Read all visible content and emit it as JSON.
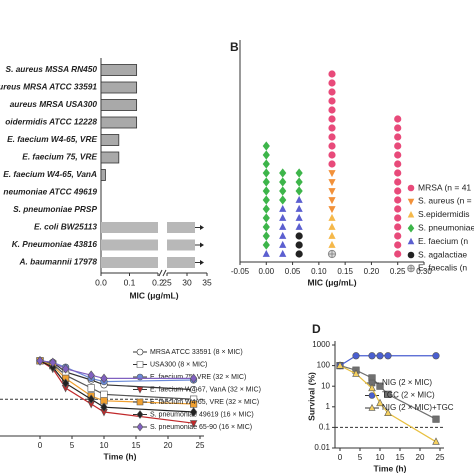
{
  "chart_data": [
    {
      "type": "hbar",
      "categories": [
        "S. aureus MSSA RN450",
        "aureus MRSA ATCC 33591",
        "aureus MRSA USA300",
        "oidermidis ATCC 12228",
        "E. faecium W4-65, VRE",
        "E. faecium 75, VRE",
        "E. faecium W4-65, VanA",
        "neumoniae ATCC 49619",
        "S. pneumoniae PRSP",
        "E. coli BW25113",
        "K. Pneumoniae 43816",
        "A. baumannii 17978"
      ],
      "values": [
        0.125,
        0.125,
        0.125,
        0.125,
        0.0625,
        0.0625,
        0.0156,
        null,
        null,
        32,
        32,
        32
      ],
      "color": "#a9a9a9",
      "edge_color": "#333333",
      "color_beyond_break": "#b8b8b8",
      "xlim": [
        0,
        35
      ],
      "xbreak": [
        0.2,
        25
      ],
      "xticks": [
        {
          "value": 0,
          "label": "0.0"
        },
        {
          "value": 0.1,
          "label": "0.1"
        },
        {
          "value": 0.2,
          "label": "0.2"
        },
        25,
        30,
        35
      ],
      "xlabel": "MIC (μg/mL)"
    },
    {
      "type": "strip",
      "panel": "B",
      "xlim": [
        -0.05,
        0.3
      ],
      "xticks": [
        -0.05,
        {
          "value": 0,
          "label": "0.00"
        },
        0.05,
        {
          "value": 0.1,
          "label": "0.10"
        },
        0.15,
        {
          "value": 0.2,
          "label": "0.20"
        },
        0.25,
        {
          "value": 0.3,
          "label": "0.30"
        }
      ],
      "xlabel": "MIC (μg/mL)",
      "series": [
        {
          "name": "MRSA (n = 41",
          "color": "#e84a7a",
          "marker": "circle",
          "values": [
            0.125,
            0.125,
            0.125,
            0.125,
            0.125,
            0.125,
            0.125,
            0.125,
            0.125,
            0.125,
            0.125,
            0.25,
            0.25,
            0.25,
            0.25,
            0.25,
            0.25,
            0.25,
            0.25,
            0.25,
            0.25,
            0.25,
            0.25,
            0.25,
            0.25,
            0.25,
            0.25
          ]
        },
        {
          "name": "S. aureus (n =",
          "color": "#f2913a",
          "marker": "triangle-down",
          "values": [
            0.125,
            0.125,
            0.125,
            0.125,
            0.125
          ]
        },
        {
          "name": "S.epidermidis",
          "color": "#f5b84a",
          "marker": "triangle",
          "values": [
            0.125,
            0.125,
            0.125,
            0.125
          ]
        },
        {
          "name": "S. pneumoniae",
          "color": "#3db54a",
          "marker": "diamond",
          "values": [
            0,
            0,
            0,
            0,
            0,
            0,
            0,
            0,
            0,
            0,
            0,
            0,
            0.03125,
            0.03125,
            0.03125,
            0.03125,
            0.0625,
            0.0625,
            0.0625
          ]
        },
        {
          "name": "E. faecium (n",
          "color": "#5b5fd0",
          "marker": "triangle",
          "values": [
            0,
            0.03125,
            0.03125,
            0.03125,
            0.03125,
            0.03125,
            0.03125,
            0.0625,
            0.0625,
            0.0625,
            0.0625
          ]
        },
        {
          "name": "S. agalactiae",
          "color": "#222222",
          "marker": "circle",
          "values": [
            0.0625,
            0.0625,
            0.0625
          ]
        },
        {
          "name": "E. faecalis (n",
          "color": "#8a8a8a",
          "marker": "circle-cross",
          "values": [
            0.125
          ]
        }
      ]
    },
    {
      "type": "line",
      "x": [
        0,
        2,
        4,
        8,
        10,
        24
      ],
      "xlim": [
        0,
        25
      ],
      "xticks": [
        0,
        5,
        10,
        15,
        20,
        25
      ],
      "xlabel": "Time (h)",
      "ylim": [
        2,
        8
      ],
      "ref_line": 4.3,
      "series": [
        {
          "name": "MRSA ATCC 33591 (8 × MIC)",
          "color": "#333333",
          "marker": "circle-open",
          "values": [
            6.7,
            6.6,
            6.0,
            5.5,
            5.2,
            4.9
          ]
        },
        {
          "name": "USA300 (8 × MIC)",
          "color": "#555555",
          "marker": "square-open",
          "values": [
            6.7,
            6.5,
            5.8,
            5.0,
            4.6,
            4.3
          ]
        },
        {
          "name": "E. faecium 75, VRE (32 × MIC)",
          "color": "#6a8ad8",
          "marker": "circle",
          "values": [
            6.7,
            6.6,
            6.3,
            5.6,
            5.4,
            5.5
          ]
        },
        {
          "name": "E. faecium W4-67, VanA (32 × MIC)",
          "color": "#c0282a",
          "marker": "triangle-down",
          "values": [
            6.7,
            6.2,
            5.0,
            4.0,
            3.5,
            2.8
          ]
        },
        {
          "name": "E. faecium W4-65, VRE (32 × MIC)",
          "color": "#f0a030",
          "marker": "square",
          "values": [
            6.7,
            6.4,
            5.6,
            4.5,
            4.2,
            4.0
          ]
        },
        {
          "name": "S. pneumoniae 49619 (16 × MIC)",
          "color": "#222222",
          "marker": "diamond",
          "values": [
            6.7,
            6.3,
            5.3,
            4.3,
            3.8,
            3.5
          ]
        },
        {
          "name": "S. pneumoniae 65-90 (16 × MIC)",
          "color": "#8060c0",
          "marker": "diamond",
          "values": [
            6.7,
            6.6,
            6.2,
            5.8,
            5.6,
            5.6
          ]
        }
      ]
    },
    {
      "type": "line",
      "panel": "D",
      "log_y": true,
      "x": [
        0,
        4,
        8,
        10,
        12,
        24
      ],
      "xlim": [
        0,
        25
      ],
      "xticks": [
        0,
        5,
        10,
        15,
        20,
        25
      ],
      "xlabel": "Time (h)",
      "ylim": [
        0.01,
        1000
      ],
      "yticks": [
        0.01,
        0.1,
        1,
        10,
        100,
        1000
      ],
      "ylabel": "Survival (%)",
      "ref_line": 0.1,
      "series": [
        {
          "name": "NIG (2 × MIC)",
          "color": "#707070",
          "marker": "square",
          "values": [
            100,
            60,
            25,
            10,
            4,
            0.25
          ]
        },
        {
          "name": "TGC (2 × MIC)",
          "color": "#4a5fd0",
          "marker": "circle",
          "values": [
            100,
            300,
            300,
            300,
            300,
            300
          ]
        },
        {
          "name": "NIG (2 × MIC)+TGC",
          "color": "#f5d060",
          "marker": "triangle",
          "values": [
            100,
            40,
            8,
            1.5,
            0.5,
            0.02
          ]
        }
      ]
    }
  ]
}
